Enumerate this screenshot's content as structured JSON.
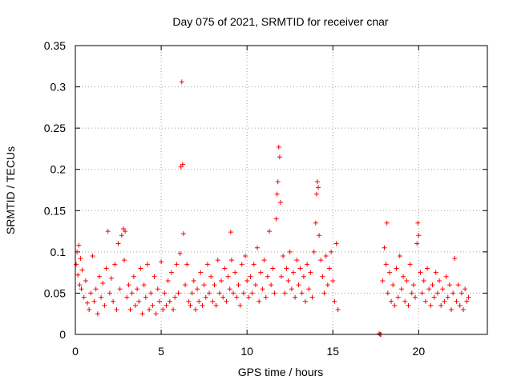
{
  "chart_data": {
    "type": "scatter",
    "title": "Day 075 of 2021, SRMTID for receiver cnar",
    "xlabel": "GPS time / hours",
    "ylabel": "SRMTID / TECUs",
    "xlim": [
      0,
      24
    ],
    "ylim": [
      0,
      0.35
    ],
    "xticks": [
      0,
      5,
      10,
      15,
      20
    ],
    "xtick_labels": [
      "0",
      "5",
      "10",
      "15",
      "20"
    ],
    "yticks": [
      0,
      0.05,
      0.1,
      0.15,
      0.2,
      0.25,
      0.3,
      0.35
    ],
    "ytick_labels": [
      "0",
      "0.05",
      "0.1",
      "0.15",
      "0.2",
      "0.25",
      "0.3",
      "0.35"
    ],
    "grid": true,
    "marker": "+",
    "color": "#ff0000",
    "series": [
      {
        "name": "SRMTID",
        "data_gap_hours": [
          15.4,
          17.6
        ],
        "points": [
          [
            0.05,
            0.085
          ],
          [
            0.1,
            0.1
          ],
          [
            0.15,
            0.072
          ],
          [
            0.2,
            0.108
          ],
          [
            0.25,
            0.06
          ],
          [
            0.3,
            0.092
          ],
          [
            0.35,
            0.055
          ],
          [
            0.4,
            0.078
          ],
          [
            0.5,
            0.045
          ],
          [
            0.6,
            0.065
          ],
          [
            0.7,
            0.038
          ],
          [
            0.8,
            0.03
          ],
          [
            0.9,
            0.05
          ],
          [
            1.0,
            0.095
          ],
          [
            1.1,
            0.04
          ],
          [
            1.2,
            0.055
          ],
          [
            1.3,
            0.025
          ],
          [
            1.4,
            0.07
          ],
          [
            1.5,
            0.045
          ],
          [
            1.6,
            0.062
          ],
          [
            1.7,
            0.035
          ],
          [
            1.8,
            0.08
          ],
          [
            1.9,
            0.125
          ],
          [
            2.0,
            0.05
          ],
          [
            2.1,
            0.068
          ],
          [
            2.2,
            0.04
          ],
          [
            2.3,
            0.085
          ],
          [
            2.4,
            0.03
          ],
          [
            2.5,
            0.11
          ],
          [
            2.6,
            0.055
          ],
          [
            2.7,
            0.12
          ],
          [
            2.8,
            0.128
          ],
          [
            2.85,
            0.09
          ],
          [
            2.9,
            0.125
          ],
          [
            3.0,
            0.045
          ],
          [
            3.1,
            0.06
          ],
          [
            3.2,
            0.03
          ],
          [
            3.3,
            0.05
          ],
          [
            3.4,
            0.07
          ],
          [
            3.5,
            0.035
          ],
          [
            3.6,
            0.055
          ],
          [
            3.7,
            0.04
          ],
          [
            3.8,
            0.08
          ],
          [
            3.9,
            0.025
          ],
          [
            4.0,
            0.06
          ],
          [
            4.1,
            0.045
          ],
          [
            4.2,
            0.085
          ],
          [
            4.3,
            0.03
          ],
          [
            4.4,
            0.05
          ],
          [
            4.5,
            0.035
          ],
          [
            4.6,
            0.07
          ],
          [
            4.7,
            0.025
          ],
          [
            4.8,
            0.055
          ],
          [
            4.9,
            0.04
          ],
          [
            5.0,
            0.088
          ],
          [
            5.1,
            0.03
          ],
          [
            5.2,
            0.05
          ],
          [
            5.3,
            0.035
          ],
          [
            5.4,
            0.065
          ],
          [
            5.5,
            0.04
          ],
          [
            5.6,
            0.075
          ],
          [
            5.7,
            0.03
          ],
          [
            5.8,
            0.045
          ],
          [
            5.9,
            0.085
          ],
          [
            6.0,
            0.05
          ],
          [
            6.1,
            0.098
          ],
          [
            6.15,
            0.203
          ],
          [
            6.2,
            0.306
          ],
          [
            6.25,
            0.206
          ],
          [
            6.3,
            0.122
          ],
          [
            6.4,
            0.06
          ],
          [
            6.5,
            0.085
          ],
          [
            6.6,
            0.04
          ],
          [
            6.7,
            0.035
          ],
          [
            6.8,
            0.05
          ],
          [
            6.9,
            0.065
          ],
          [
            7.0,
            0.03
          ],
          [
            7.1,
            0.055
          ],
          [
            7.2,
            0.04
          ],
          [
            7.3,
            0.075
          ],
          [
            7.4,
            0.035
          ],
          [
            7.5,
            0.06
          ],
          [
            7.6,
            0.045
          ],
          [
            7.7,
            0.085
          ],
          [
            7.8,
            0.05
          ],
          [
            7.9,
            0.07
          ],
          [
            8.0,
            0.04
          ],
          [
            8.1,
            0.06
          ],
          [
            8.2,
            0.035
          ],
          [
            8.3,
            0.09
          ],
          [
            8.4,
            0.05
          ],
          [
            8.5,
            0.065
          ],
          [
            8.6,
            0.045
          ],
          [
            8.7,
            0.08
          ],
          [
            8.8,
            0.04
          ],
          [
            8.9,
            0.07
          ],
          [
            9.0,
            0.055
          ],
          [
            9.05,
            0.124
          ],
          [
            9.1,
            0.09
          ],
          [
            9.2,
            0.05
          ],
          [
            9.3,
            0.075
          ],
          [
            9.4,
            0.045
          ],
          [
            9.5,
            0.06
          ],
          [
            9.6,
            0.035
          ],
          [
            9.7,
            0.085
          ],
          [
            9.8,
            0.05
          ],
          [
            9.9,
            0.095
          ],
          [
            10.0,
            0.065
          ],
          [
            10.1,
            0.045
          ],
          [
            10.2,
            0.07
          ],
          [
            10.3,
            0.05
          ],
          [
            10.4,
            0.085
          ],
          [
            10.5,
            0.06
          ],
          [
            10.6,
            0.105
          ],
          [
            10.7,
            0.04
          ],
          [
            10.8,
            0.075
          ],
          [
            10.9,
            0.055
          ],
          [
            11.0,
            0.09
          ],
          [
            11.1,
            0.045
          ],
          [
            11.2,
            0.07
          ],
          [
            11.3,
            0.125
          ],
          [
            11.4,
            0.06
          ],
          [
            11.5,
            0.08
          ],
          [
            11.6,
            0.05
          ],
          [
            11.7,
            0.14
          ],
          [
            11.75,
            0.17
          ],
          [
            11.8,
            0.185
          ],
          [
            11.85,
            0.227
          ],
          [
            11.9,
            0.215
          ],
          [
            11.95,
            0.16
          ],
          [
            12.0,
            0.07
          ],
          [
            12.1,
            0.095
          ],
          [
            12.2,
            0.05
          ],
          [
            12.3,
            0.08
          ],
          [
            12.4,
            0.065
          ],
          [
            12.5,
            0.1
          ],
          [
            12.6,
            0.055
          ],
          [
            12.7,
            0.075
          ],
          [
            12.8,
            0.045
          ],
          [
            12.9,
            0.09
          ],
          [
            13.0,
            0.06
          ],
          [
            13.1,
            0.08
          ],
          [
            13.2,
            0.05
          ],
          [
            13.3,
            0.07
          ],
          [
            13.4,
            0.04
          ],
          [
            13.5,
            0.085
          ],
          [
            13.6,
            0.055
          ],
          [
            13.7,
            0.075
          ],
          [
            13.8,
            0.045
          ],
          [
            13.9,
            0.1
          ],
          [
            14.0,
            0.135
          ],
          [
            14.05,
            0.17
          ],
          [
            14.1,
            0.185
          ],
          [
            14.15,
            0.178
          ],
          [
            14.2,
            0.12
          ],
          [
            14.3,
            0.09
          ],
          [
            14.4,
            0.07
          ],
          [
            14.5,
            0.05
          ],
          [
            14.6,
            0.095
          ],
          [
            14.7,
            0.06
          ],
          [
            14.8,
            0.08
          ],
          [
            14.9,
            0.1
          ],
          [
            15.0,
            0.065
          ],
          [
            15.1,
            0.04
          ],
          [
            15.2,
            0.11
          ],
          [
            15.3,
            0.03
          ],
          [
            17.7,
            0.001
          ],
          [
            17.75,
            0.0
          ],
          [
            17.8,
            0.0
          ],
          [
            17.9,
            0.065
          ],
          [
            18.0,
            0.105
          ],
          [
            18.1,
            0.085
          ],
          [
            18.15,
            0.135
          ],
          [
            18.2,
            0.05
          ],
          [
            18.3,
            0.075
          ],
          [
            18.4,
            0.04
          ],
          [
            18.5,
            0.06
          ],
          [
            18.6,
            0.035
          ],
          [
            18.7,
            0.08
          ],
          [
            18.8,
            0.045
          ],
          [
            18.9,
            0.095
          ],
          [
            19.0,
            0.055
          ],
          [
            19.1,
            0.07
          ],
          [
            19.2,
            0.04
          ],
          [
            19.3,
            0.065
          ],
          [
            19.4,
            0.035
          ],
          [
            19.5,
            0.085
          ],
          [
            19.6,
            0.05
          ],
          [
            19.7,
            0.06
          ],
          [
            19.8,
            0.045
          ],
          [
            19.9,
            0.11
          ],
          [
            19.95,
            0.135
          ],
          [
            20.0,
            0.12
          ],
          [
            20.1,
            0.075
          ],
          [
            20.2,
            0.05
          ],
          [
            20.3,
            0.065
          ],
          [
            20.4,
            0.04
          ],
          [
            20.5,
            0.08
          ],
          [
            20.6,
            0.055
          ],
          [
            20.7,
            0.035
          ],
          [
            20.8,
            0.06
          ],
          [
            20.9,
            0.045
          ],
          [
            21.0,
            0.075
          ],
          [
            21.1,
            0.05
          ],
          [
            21.2,
            0.065
          ],
          [
            21.3,
            0.035
          ],
          [
            21.4,
            0.055
          ],
          [
            21.5,
            0.04
          ],
          [
            21.6,
            0.07
          ],
          [
            21.7,
            0.045
          ],
          [
            21.8,
            0.06
          ],
          [
            21.9,
            0.03
          ],
          [
            22.0,
            0.05
          ],
          [
            22.1,
            0.092
          ],
          [
            22.2,
            0.04
          ],
          [
            22.3,
            0.06
          ],
          [
            22.4,
            0.035
          ],
          [
            22.5,
            0.05
          ],
          [
            22.6,
            0.03
          ],
          [
            22.7,
            0.055
          ],
          [
            22.8,
            0.04
          ],
          [
            22.9,
            0.045
          ]
        ]
      }
    ]
  }
}
